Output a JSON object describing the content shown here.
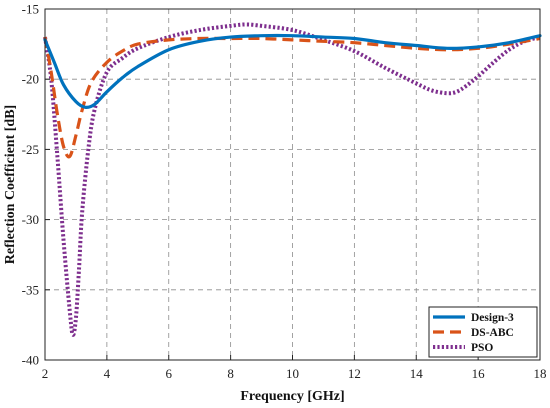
{
  "chart_data": {
    "type": "line",
    "title": "",
    "xlabel": "Frequency [GHz]",
    "ylabel": "Reflection Coefficient [dB]",
    "xlim": [
      2,
      18
    ],
    "ylim": [
      -40,
      -15
    ],
    "xticks": [
      2,
      4,
      6,
      8,
      10,
      12,
      14,
      16,
      18
    ],
    "yticks": [
      -15,
      -20,
      -25,
      -30,
      -35,
      -40
    ],
    "grid": true,
    "legend_position": "bottom-right",
    "series": [
      {
        "name": "Design-3",
        "color": "#0072BD",
        "style": "solid",
        "x": [
          2.0,
          2.3,
          2.6,
          3.0,
          3.3,
          3.6,
          4.0,
          4.5,
          5.0,
          6.0,
          7.0,
          8.0,
          9.0,
          10.0,
          11.0,
          12.0,
          13.0,
          14.0,
          15.0,
          16.0,
          17.0,
          18.0
        ],
        "y": [
          -17.2,
          -18.8,
          -20.4,
          -21.6,
          -22.0,
          -21.8,
          -20.9,
          -19.9,
          -19.1,
          -17.9,
          -17.3,
          -17.0,
          -16.9,
          -16.9,
          -17.0,
          -17.1,
          -17.4,
          -17.6,
          -17.8,
          -17.7,
          -17.4,
          -16.9
        ]
      },
      {
        "name": "DS-ABC",
        "color": "#D95319",
        "style": "dashed",
        "x": [
          2.0,
          2.2,
          2.4,
          2.6,
          2.8,
          3.0,
          3.2,
          3.5,
          4.0,
          4.5,
          5.0,
          6.0,
          7.0,
          8.0,
          9.0,
          10.0,
          11.0,
          12.0,
          13.0,
          14.0,
          15.0,
          16.0,
          17.0,
          18.0
        ],
        "y": [
          -17.0,
          -19.5,
          -22.5,
          -24.8,
          -25.5,
          -24.0,
          -22.2,
          -20.2,
          -18.8,
          -18.0,
          -17.5,
          -17.2,
          -17.1,
          -17.1,
          -17.1,
          -17.2,
          -17.3,
          -17.4,
          -17.6,
          -17.8,
          -17.9,
          -17.8,
          -17.5,
          -17.1
        ]
      },
      {
        "name": "PSO",
        "color": "#7E2F8E",
        "style": "dotted",
        "x": [
          2.0,
          2.2,
          2.4,
          2.6,
          2.8,
          2.9,
          3.0,
          3.1,
          3.2,
          3.4,
          3.6,
          4.0,
          4.5,
          5.0,
          6.0,
          7.0,
          8.0,
          8.5,
          9.0,
          10.0,
          11.0,
          12.0,
          13.0,
          14.0,
          14.5,
          15.0,
          15.3,
          15.6,
          16.0,
          16.5,
          17.0,
          17.5,
          18.0
        ],
        "y": [
          -17.0,
          -20.0,
          -25.5,
          -31.5,
          -36.5,
          -38.2,
          -37.0,
          -33.5,
          -29.5,
          -25.0,
          -22.2,
          -19.5,
          -18.5,
          -17.8,
          -17.0,
          -16.5,
          -16.2,
          -16.1,
          -16.2,
          -16.5,
          -17.2,
          -18.0,
          -19.2,
          -20.3,
          -20.8,
          -21.0,
          -20.9,
          -20.5,
          -19.8,
          -18.8,
          -17.9,
          -17.3,
          -17.0
        ]
      }
    ]
  }
}
